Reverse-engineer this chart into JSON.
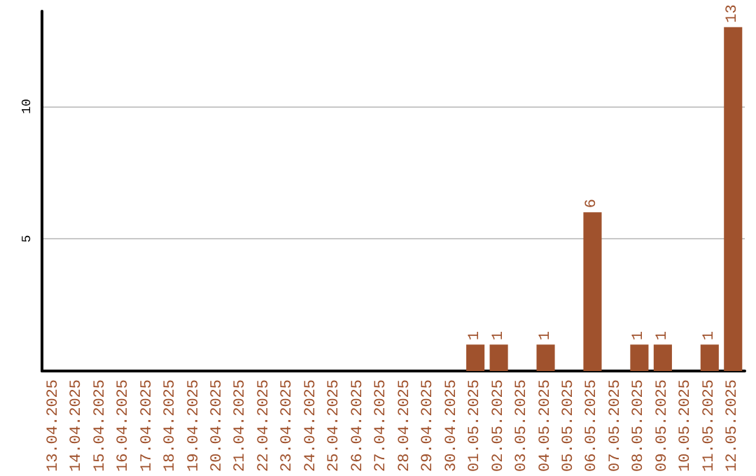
{
  "chart_data": {
    "type": "bar",
    "categories": [
      "13.04.2025",
      "14.04.2025",
      "15.04.2025",
      "16.04.2025",
      "17.04.2025",
      "18.04.2025",
      "19.04.2025",
      "20.04.2025",
      "21.04.2025",
      "22.04.2025",
      "23.04.2025",
      "24.04.2025",
      "25.04.2025",
      "26.04.2025",
      "27.04.2025",
      "28.04.2025",
      "29.04.2025",
      "30.04.2025",
      "01.05.2025",
      "02.05.2025",
      "03.05.2025",
      "04.05.2025",
      "05.05.2025",
      "06.05.2025",
      "07.05.2025",
      "08.05.2025",
      "09.05.2025",
      "10.05.2025",
      "11.05.2025",
      "12.05.2025"
    ],
    "values": [
      0,
      0,
      0,
      0,
      0,
      0,
      0,
      0,
      0,
      0,
      0,
      0,
      0,
      0,
      0,
      0,
      0,
      0,
      1,
      1,
      0,
      1,
      0,
      6,
      0,
      1,
      1,
      0,
      1,
      13
    ],
    "value_labels": [
      null,
      null,
      null,
      null,
      null,
      null,
      null,
      null,
      null,
      null,
      null,
      null,
      null,
      null,
      null,
      null,
      null,
      null,
      "1",
      "1",
      null,
      "1",
      null,
      "6",
      null,
      "1",
      "1",
      null,
      "1",
      "13"
    ],
    "color": "#a0522d",
    "ylim": [
      0,
      13.6
    ],
    "yticks": [
      5,
      10
    ],
    "grid": "y"
  }
}
